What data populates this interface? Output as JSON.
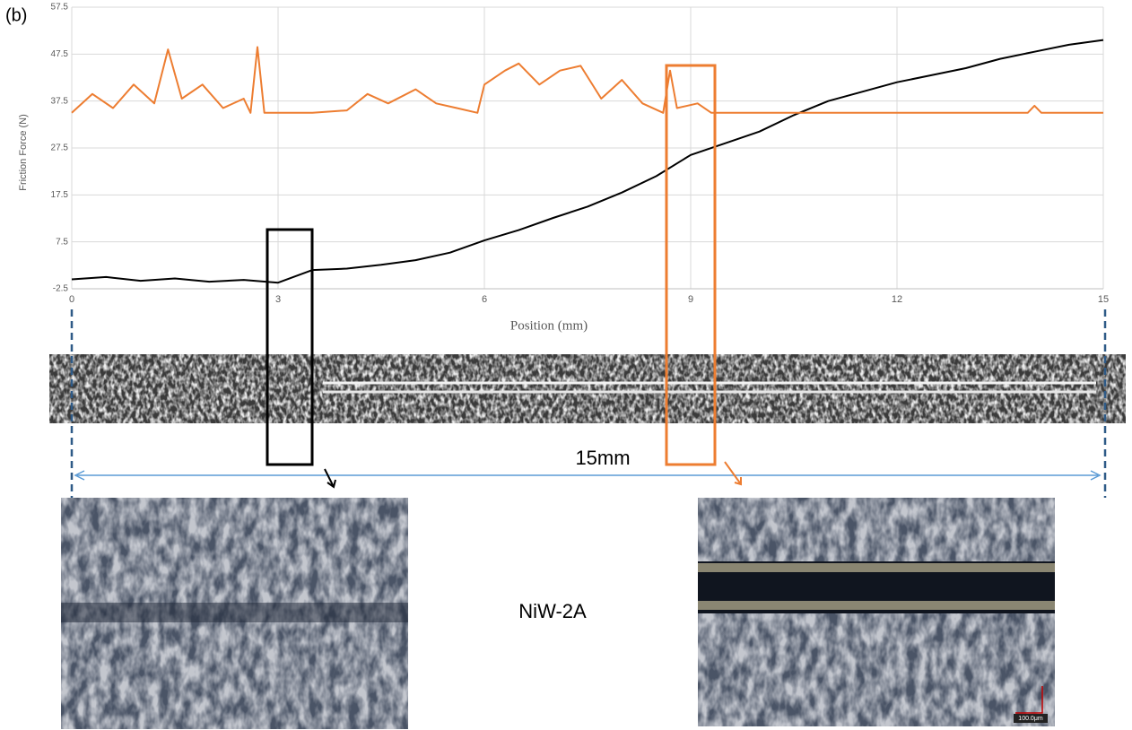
{
  "chart_data": {
    "type": "line",
    "title": "(b)",
    "y_label": "Friction Force (N)",
    "x_label": "Position (mm)",
    "xlim": [
      0,
      15
    ],
    "xticks": [
      0,
      3,
      6,
      9,
      12,
      15
    ],
    "ylim": [
      -2.5,
      57.5
    ],
    "yticks": [
      -2.5,
      7.5,
      17.5,
      27.5,
      37.5,
      47.5,
      57.5
    ],
    "grid": true,
    "series": [
      {
        "color": "#000000",
        "x": [
          0,
          0.5,
          1,
          1.5,
          2,
          2.5,
          3,
          3.5,
          4,
          4.5,
          5,
          5.5,
          6,
          6.5,
          7,
          7.5,
          8,
          8.5,
          9,
          9.5,
          10,
          10.5,
          11,
          11.5,
          12,
          12.5,
          13,
          13.5,
          14,
          14.5,
          15
        ],
        "values": [
          -0.5,
          0,
          -0.8,
          -0.3,
          -1,
          -0.6,
          -1.2,
          1.5,
          1.8,
          2.6,
          3.6,
          5.2,
          7.8,
          10,
          12.6,
          15,
          18,
          21.5,
          26,
          28.5,
          31,
          34.5,
          37.5,
          39.5,
          41.5,
          43,
          44.5,
          46.5,
          48,
          49.5,
          50.5
        ]
      },
      {
        "color": "#ed7d31",
        "x": [
          0,
          0.3,
          0.6,
          0.9,
          1.2,
          1.4,
          1.6,
          1.9,
          2.2,
          2.5,
          2.6,
          2.7,
          2.8,
          3.5,
          4.0,
          4.3,
          4.6,
          5.0,
          5.3,
          5.6,
          5.9,
          6.0,
          6.3,
          6.5,
          6.8,
          7.1,
          7.4,
          7.7,
          8.0,
          8.3,
          8.6,
          8.7,
          8.8,
          9.1,
          9.3,
          10,
          11,
          12,
          13,
          13.9,
          14,
          14.1,
          15
        ],
        "values": [
          35,
          39,
          36,
          41,
          37,
          48.5,
          38,
          41,
          36,
          38,
          35,
          49,
          35,
          35,
          35.5,
          39,
          37,
          40,
          37,
          36,
          35,
          41,
          44,
          45.5,
          41,
          44,
          45,
          38,
          42,
          37,
          35,
          44,
          36,
          37,
          35,
          35,
          35,
          35,
          35,
          35,
          36.5,
          35,
          35
        ]
      }
    ],
    "annotations": {
      "length": "15mm",
      "sample": "NiW-2A",
      "scale_bar": "100.0μm"
    }
  }
}
